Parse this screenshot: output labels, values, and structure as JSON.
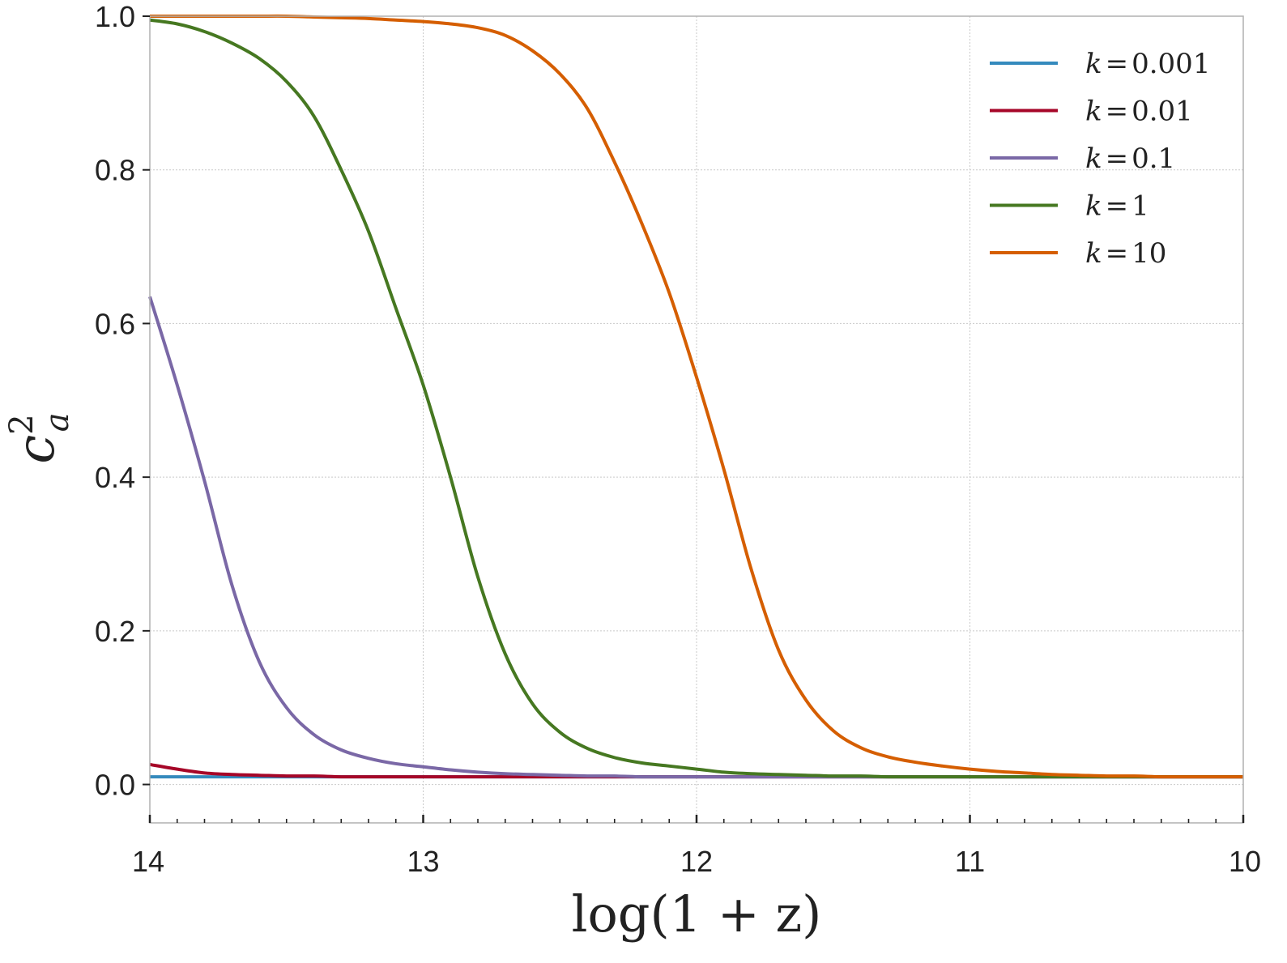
{
  "chart_data": {
    "type": "line",
    "title": "",
    "xlabel": "log(1 + z)",
    "ylabel_main": "c",
    "ylabel_sup": "2",
    "ylabel_sub": "a",
    "xlim": [
      14,
      10
    ],
    "ylim": [
      -0.05,
      1.0
    ],
    "x_ticks": [
      14,
      13,
      12,
      11,
      10
    ],
    "x_tick_labels": [
      "14",
      "13",
      "12",
      "11",
      "10"
    ],
    "y_ticks": [
      0.0,
      0.2,
      0.4,
      0.6,
      0.8,
      1.0
    ],
    "y_tick_labels": [
      "0.0",
      "0.2",
      "0.4",
      "0.6",
      "0.8",
      "1.0"
    ],
    "x_minor_ticks": [
      13.9,
      13.8,
      13.7,
      13.6,
      13.5,
      13.4,
      13.3,
      13.2,
      13.1,
      12.9,
      12.8,
      12.7,
      12.6,
      12.5,
      12.4,
      12.3,
      12.2,
      12.1,
      11.9,
      11.8,
      11.7,
      11.6,
      11.5,
      11.4,
      11.3,
      11.2,
      11.1,
      10.9,
      10.8,
      10.7,
      10.6,
      10.5,
      10.4,
      10.3,
      10.2,
      10.1
    ],
    "grid": true,
    "legend_position": "top-right",
    "x": [
      14.0,
      13.9,
      13.8,
      13.7,
      13.6,
      13.5,
      13.4,
      13.3,
      13.2,
      13.1,
      13.0,
      12.9,
      12.8,
      12.7,
      12.6,
      12.5,
      12.4,
      12.3,
      12.2,
      12.1,
      12.0,
      11.9,
      11.8,
      11.7,
      11.6,
      11.5,
      11.4,
      11.3,
      11.2,
      11.1,
      11.0,
      10.9,
      10.8,
      10.7,
      10.6,
      10.5,
      10.4,
      10.3,
      10.2,
      10.1,
      10.0
    ],
    "series": [
      {
        "name": "k = 0.001",
        "label_k": "k",
        "label_eq": "=",
        "label_val": "0.001",
        "color": "#348abd",
        "values": [
          0.01,
          0.01,
          0.01,
          0.01,
          0.01,
          0.01,
          0.01,
          0.01,
          0.01,
          0.01,
          0.01,
          0.01,
          0.01,
          0.01,
          0.01,
          0.01,
          0.01,
          0.01,
          0.01,
          0.01,
          0.01,
          0.01,
          0.01,
          0.01,
          0.01,
          0.01,
          0.01,
          0.01,
          0.01,
          0.01,
          0.01,
          0.01,
          0.01,
          0.01,
          0.01,
          0.01,
          0.01,
          0.01,
          0.01,
          0.01,
          0.01
        ]
      },
      {
        "name": "k = 0.01",
        "label_k": "k",
        "label_eq": "=",
        "label_val": "0.01",
        "color": "#a60628",
        "values": [
          0.026,
          0.02,
          0.015,
          0.013,
          0.012,
          0.011,
          0.011,
          0.01,
          0.01,
          0.01,
          0.01,
          0.01,
          0.01,
          0.01,
          0.01,
          0.01,
          0.01,
          0.01,
          0.01,
          0.01,
          0.01,
          0.01,
          0.01,
          0.01,
          0.01,
          0.01,
          0.01,
          0.01,
          0.01,
          0.01,
          0.01,
          0.01,
          0.01,
          0.01,
          0.01,
          0.01,
          0.01,
          0.01,
          0.01,
          0.01,
          0.01
        ]
      },
      {
        "name": "k = 0.1",
        "label_k": "k",
        "label_eq": "=",
        "label_val": "0.1",
        "color": "#7a68a6",
        "values": [
          0.635,
          0.52,
          0.395,
          0.26,
          0.16,
          0.1,
          0.065,
          0.045,
          0.034,
          0.027,
          0.023,
          0.019,
          0.016,
          0.014,
          0.013,
          0.012,
          0.011,
          0.011,
          0.01,
          0.01,
          0.01,
          0.01,
          0.01,
          0.01,
          0.01,
          0.01,
          0.01,
          0.01,
          0.01,
          0.01,
          0.01,
          0.01,
          0.01,
          0.01,
          0.01,
          0.01,
          0.01,
          0.01,
          0.01,
          0.01,
          0.01
        ]
      },
      {
        "name": "k = 1",
        "label_k": "k",
        "label_eq": "=",
        "label_val": "1",
        "color": "#467821",
        "values": [
          0.995,
          0.99,
          0.98,
          0.965,
          0.945,
          0.915,
          0.87,
          0.8,
          0.72,
          0.62,
          0.52,
          0.4,
          0.27,
          0.17,
          0.105,
          0.068,
          0.047,
          0.035,
          0.028,
          0.024,
          0.02,
          0.016,
          0.014,
          0.013,
          0.012,
          0.011,
          0.011,
          0.01,
          0.01,
          0.01,
          0.01,
          0.01,
          0.01,
          0.01,
          0.01,
          0.01,
          0.01,
          0.01,
          0.01,
          0.01,
          0.01
        ]
      },
      {
        "name": "k = 10",
        "label_k": "k",
        "label_eq": "=",
        "label_val": "10",
        "color": "#d55e00",
        "values": [
          1.0,
          1.0,
          1.0,
          1.0,
          1.0,
          1.0,
          0.999,
          0.998,
          0.997,
          0.995,
          0.993,
          0.99,
          0.985,
          0.975,
          0.955,
          0.925,
          0.88,
          0.81,
          0.73,
          0.64,
          0.53,
          0.41,
          0.28,
          0.175,
          0.11,
          0.07,
          0.048,
          0.036,
          0.029,
          0.024,
          0.02,
          0.017,
          0.015,
          0.013,
          0.012,
          0.011,
          0.011,
          0.01,
          0.01,
          0.01,
          0.01
        ]
      }
    ]
  }
}
